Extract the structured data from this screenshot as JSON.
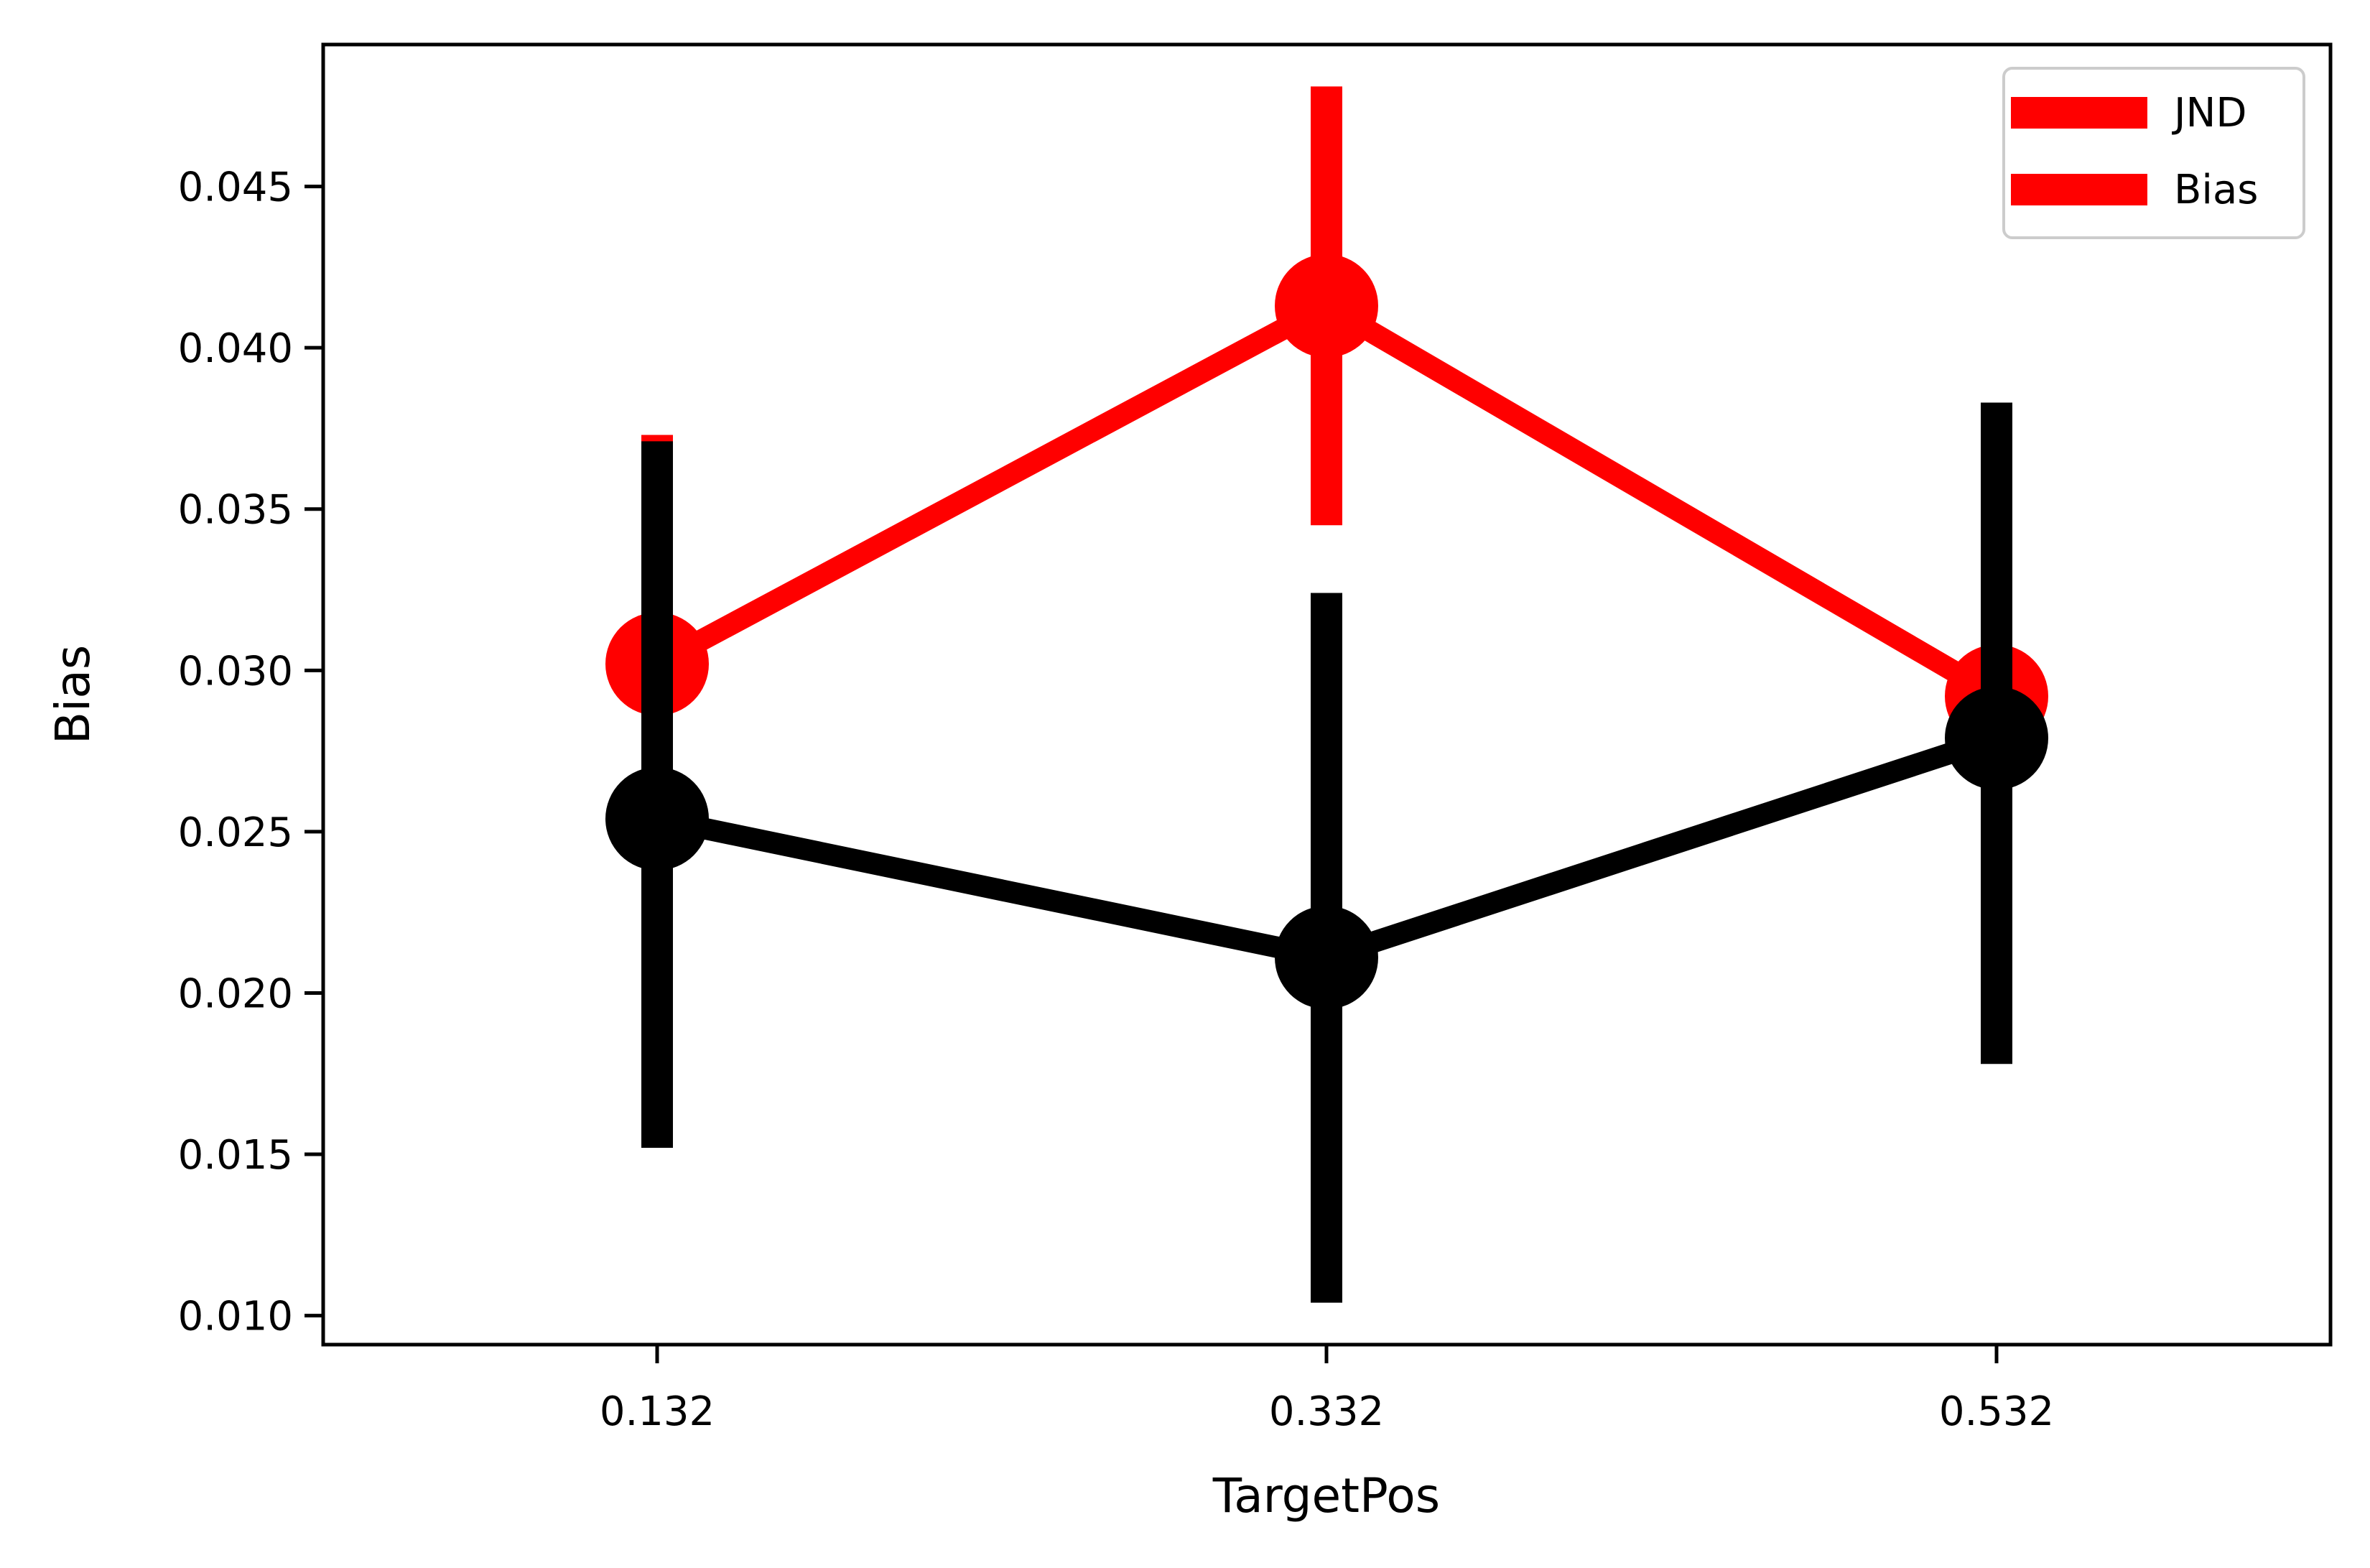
{
  "chart_data": {
    "type": "line",
    "xlabel": "TargetPos",
    "ylabel": "Bias",
    "categories": [
      "0.132",
      "0.332",
      "0.532"
    ],
    "ylim": [
      0.0091,
      0.0494
    ],
    "yticks": [
      "0.010",
      "0.015",
      "0.020",
      "0.025",
      "0.030",
      "0.035",
      "0.040",
      "0.045"
    ],
    "legend": {
      "placement": "top-right",
      "entries": [
        "JND",
        "Bias"
      ]
    },
    "grid": false,
    "series": [
      {
        "name": "JND",
        "color": "#ff0000",
        "values": [
          0.0302,
          0.0413,
          0.0292
        ],
        "error_low": [
          0.0235,
          0.0345,
          0.0208
        ],
        "error_high": [
          0.0373,
          0.0481,
          0.0371
        ]
      },
      {
        "name": "Bias",
        "color": "#000000",
        "values": [
          0.0254,
          0.0211,
          0.0279
        ],
        "error_low": [
          0.0152,
          0.0104,
          0.0178
        ],
        "error_high": [
          0.0371,
          0.0324,
          0.0383
        ]
      }
    ]
  }
}
